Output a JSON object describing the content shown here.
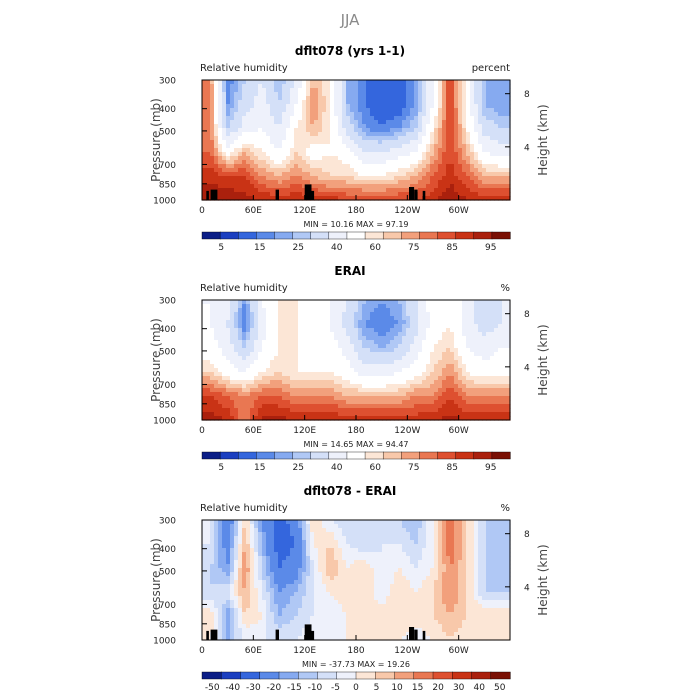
{
  "figure": {
    "title": "JJA"
  },
  "colors": {
    "blues": [
      "#0b1e86",
      "#1b3fc0",
      "#3466dd",
      "#5b8ae8",
      "#86aaf0",
      "#b0c8f5",
      "#d4e0f8",
      "#eef1fb"
    ],
    "reds": [
      "#fce6d6",
      "#f8c8aa",
      "#f2a07c",
      "#e97752",
      "#de5030",
      "#c93315",
      "#aa200d",
      "#7a1004"
    ],
    "white": "#ffffff",
    "mask": "#000000"
  },
  "chart_data": [
    {
      "type": "heatmap",
      "title": "dflt078 (yrs 1-1)",
      "left_label": "Relative humidity",
      "right_label": "percent",
      "ylabel": "Pressure (mb)",
      "y2label": "Height (km)",
      "x_ticks": [
        "0",
        "60E",
        "120E",
        "180",
        "120W",
        "60W"
      ],
      "x_tick_values": [
        0,
        60,
        120,
        180,
        240,
        300
      ],
      "xlim": [
        0,
        360
      ],
      "y_ticks": [
        "300",
        "400",
        "500",
        "700",
        "850",
        "1000"
      ],
      "y_tick_values": [
        300,
        400,
        500,
        700,
        850,
        1000
      ],
      "ylim": [
        1000,
        300
      ],
      "y2_ticks": [
        "8",
        "4"
      ],
      "y2_tick_values": [
        8,
        4
      ],
      "stats": "MIN =   10.16   MAX =   97.19",
      "colorbar_labels": [
        "5",
        "15",
        "25",
        "40",
        "60",
        "75",
        "85",
        "95"
      ],
      "levels": [
        5,
        10,
        15,
        20,
        25,
        30,
        40,
        50,
        60,
        65,
        70,
        75,
        80,
        85,
        90,
        95
      ],
      "nlev": 17,
      "rows": [
        [
          75,
          15,
          30,
          40,
          25,
          40,
          70,
          60,
          25,
          15,
          10,
          10,
          20,
          50,
          85,
          55,
          25,
          20
        ],
        [
          75,
          20,
          35,
          45,
          30,
          50,
          75,
          60,
          25,
          15,
          10,
          10,
          20,
          50,
          85,
          55,
          25,
          20
        ],
        [
          75,
          30,
          45,
          50,
          40,
          60,
          70,
          60,
          35,
          20,
          15,
          20,
          30,
          60,
          85,
          60,
          35,
          30
        ],
        [
          80,
          55,
          70,
          60,
          50,
          65,
          55,
          60,
          55,
          40,
          40,
          45,
          50,
          70,
          85,
          70,
          50,
          45
        ],
        [
          88,
          85,
          85,
          75,
          70,
          75,
          70,
          65,
          65,
          60,
          60,
          65,
          70,
          80,
          88,
          80,
          70,
          70
        ],
        [
          95,
          95,
          92,
          90,
          88,
          90,
          88,
          88,
          85,
          85,
          85,
          85,
          85,
          88,
          95,
          90,
          88,
          88
        ]
      ],
      "mask": [
        [
          5,
          8
        ],
        [
          10,
          14
        ],
        [
          13,
          16
        ],
        [
          14,
          18
        ],
        [
          86,
          90
        ],
        [
          120,
          128
        ],
        [
          128,
          131
        ],
        [
          242,
          248
        ],
        [
          248,
          252
        ],
        [
          258,
          261
        ]
      ]
    },
    {
      "type": "heatmap",
      "title": "ERAI",
      "left_label": "Relative humidity",
      "right_label": "%",
      "ylabel": "Pressure (mb)",
      "y2label": "Height (km)",
      "x_ticks": [
        "0",
        "60E",
        "120E",
        "180",
        "120W",
        "60W"
      ],
      "x_tick_values": [
        0,
        60,
        120,
        180,
        240,
        300
      ],
      "xlim": [
        0,
        360
      ],
      "y_ticks": [
        "300",
        "400",
        "500",
        "700",
        "850",
        "1000"
      ],
      "y_tick_values": [
        300,
        400,
        500,
        700,
        850,
        1000
      ],
      "ylim": [
        1000,
        300
      ],
      "y2_ticks": [
        "8",
        "4"
      ],
      "y2_tick_values": [
        8,
        4
      ],
      "stats": "MIN =   14.65   MAX =   94.47",
      "colorbar_labels": [
        "5",
        "15",
        "25",
        "40",
        "60",
        "75",
        "85",
        "95"
      ],
      "levels": [
        5,
        10,
        15,
        20,
        25,
        30,
        40,
        50,
        60,
        65,
        70,
        75,
        80,
        85,
        90,
        95
      ],
      "nlev": 17,
      "rows": [
        [
          50,
          45,
          20,
          50,
          60,
          60,
          55,
          50,
          40,
          25,
          20,
          25,
          40,
          55,
          60,
          45,
          30,
          40
        ],
        [
          50,
          40,
          15,
          45,
          60,
          60,
          55,
          50,
          35,
          20,
          15,
          20,
          35,
          55,
          60,
          45,
          35,
          40
        ],
        [
          55,
          45,
          30,
          50,
          60,
          60,
          55,
          55,
          45,
          30,
          25,
          30,
          45,
          60,
          65,
          50,
          45,
          50
        ],
        [
          65,
          55,
          50,
          60,
          65,
          60,
          60,
          60,
          55,
          45,
          45,
          50,
          55,
          65,
          75,
          60,
          55,
          55
        ],
        [
          85,
          80,
          75,
          80,
          80,
          75,
          75,
          75,
          70,
          70,
          70,
          70,
          75,
          75,
          85,
          75,
          75,
          75
        ],
        [
          92,
          90,
          75,
          92,
          92,
          90,
          90,
          90,
          88,
          88,
          88,
          88,
          88,
          90,
          92,
          90,
          90,
          90
        ]
      ],
      "mask": []
    },
    {
      "type": "heatmap",
      "title": "dflt078 - ERAI",
      "left_label": "Relative humidity",
      "right_label": "%",
      "ylabel": "Pressure (mb)",
      "y2label": "Height (km)",
      "x_ticks": [
        "0",
        "60E",
        "120E",
        "180",
        "120W",
        "60W"
      ],
      "x_tick_values": [
        0,
        60,
        120,
        180,
        240,
        300
      ],
      "xlim": [
        0,
        360
      ],
      "y_ticks": [
        "300",
        "400",
        "500",
        "700",
        "850",
        "1000"
      ],
      "y_tick_values": [
        300,
        400,
        500,
        700,
        850,
        1000
      ],
      "ylim": [
        1000,
        300
      ],
      "y2_ticks": [
        "8",
        "4"
      ],
      "y2_tick_values": [
        8,
        4
      ],
      "stats": "MIN =  -37.73   MAX =   19.26",
      "colorbar_labels": [
        "-50",
        "-40",
        "-30",
        "-20",
        "-15",
        "-10",
        "-5",
        "0",
        "5",
        "10",
        "15",
        "20",
        "30",
        "40",
        "50"
      ],
      "levels": [
        -50,
        -40,
        -30,
        -20,
        -15,
        -10,
        -5,
        0,
        5,
        10,
        15,
        20,
        30,
        40,
        50
      ],
      "nlev": 16,
      "rows": [
        [
          -5,
          -30,
          5,
          -20,
          -35,
          -25,
          5,
          -5,
          -10,
          -10,
          -10,
          -10,
          -15,
          0,
          20,
          5,
          -10,
          -15
        ],
        [
          -5,
          -25,
          10,
          -15,
          -35,
          -30,
          0,
          5,
          -5,
          -10,
          -5,
          -5,
          -10,
          0,
          20,
          5,
          -10,
          -15
        ],
        [
          -10,
          -20,
          15,
          -10,
          -30,
          -25,
          -5,
          10,
          0,
          5,
          -5,
          0,
          -5,
          0,
          15,
          5,
          -10,
          -15
        ],
        [
          -10,
          -5,
          10,
          -5,
          -20,
          -15,
          -5,
          0,
          5,
          5,
          -5,
          5,
          0,
          5,
          15,
          5,
          -10,
          -10
        ],
        [
          5,
          -20,
          5,
          0,
          -15,
          -10,
          -5,
          -5,
          0,
          5,
          5,
          5,
          5,
          5,
          10,
          5,
          5,
          5
        ],
        [
          0,
          -15,
          -5,
          -5,
          -5,
          -5,
          0,
          -5,
          0,
          0,
          0,
          0,
          -5,
          0,
          5,
          0,
          0,
          0
        ]
      ],
      "mask": [
        [
          5,
          8
        ],
        [
          10,
          14
        ],
        [
          13,
          16
        ],
        [
          14,
          18
        ],
        [
          86,
          90
        ],
        [
          120,
          128
        ],
        [
          128,
          131
        ],
        [
          242,
          248
        ],
        [
          248,
          252
        ],
        [
          258,
          261
        ]
      ]
    }
  ]
}
